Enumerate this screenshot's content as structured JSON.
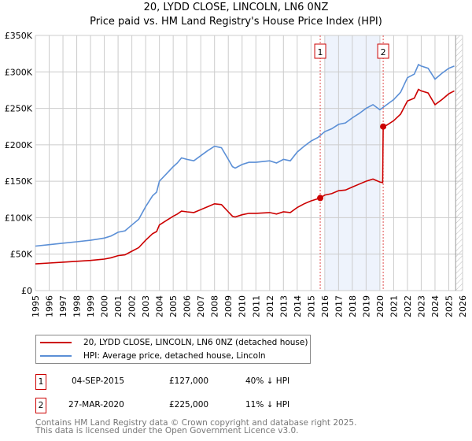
{
  "title": "20, LYDD CLOSE, LINCOLN, LN6 0NZ",
  "subtitle": "Price paid vs. HM Land Registry's House Price Index (HPI)",
  "chart_data": {
    "type": "line",
    "title": "20, LYDD CLOSE, LINCOLN, LN6 0NZ — Price paid vs. HM Land Registry's House Price Index (HPI)",
    "xlim": [
      1995,
      2026
    ],
    "ylim": [
      0,
      350000
    ],
    "x_ticks": [
      "1995",
      "1996",
      "1997",
      "1998",
      "1999",
      "2000",
      "2001",
      "2002",
      "2003",
      "2004",
      "2005",
      "2006",
      "2007",
      "2008",
      "2009",
      "2010",
      "2011",
      "2012",
      "2013",
      "2014",
      "2015",
      "2016",
      "2017",
      "2018",
      "2019",
      "2020",
      "2021",
      "2022",
      "2023",
      "2024",
      "2025",
      "2026"
    ],
    "y_ticks": [
      {
        "v": 0,
        "label": "£0"
      },
      {
        "v": 50000,
        "label": "£50K"
      },
      {
        "v": 100000,
        "label": "£100K"
      },
      {
        "v": 150000,
        "label": "£150K"
      },
      {
        "v": 200000,
        "label": "£200K"
      },
      {
        "v": 250000,
        "label": "£250K"
      },
      {
        "v": 300000,
        "label": "£300K"
      },
      {
        "v": 350000,
        "label": "£350K"
      }
    ],
    "grid": true,
    "shaded_range": [
      2016,
      2020
    ],
    "forecast_hatch_from": 2025.5,
    "series": [
      {
        "name": "20, LYDD CLOSE, LINCOLN, LN6 0NZ (detached house)",
        "color": "#cc0000",
        "x": [
          1995,
          1996,
          1997,
          1998,
          1999,
          2000,
          2000.5,
          2001,
          2001.5,
          2002,
          2002.5,
          2003,
          2003.5,
          2003.8,
          2004,
          2004.5,
          2005,
          2005.3,
          2005.6,
          2006,
          2006.5,
          2007,
          2007.5,
          2008,
          2008.5,
          2009,
          2009.3,
          2009.5,
          2010,
          2010.5,
          2011,
          2012,
          2012.5,
          2013,
          2013.5,
          2014,
          2014.5,
          2015,
          2015.5,
          2015.67,
          2016,
          2016.5,
          2017,
          2017.5,
          2018,
          2018.5,
          2019,
          2019.5,
          2020,
          2020.2,
          2020.24,
          2020.5,
          2021,
          2021.5,
          2022,
          2022.5,
          2022.8,
          2023,
          2023.5,
          2024,
          2024.5,
          2025,
          2025.4
        ],
        "y": [
          36600,
          37800,
          39000,
          40200,
          41400,
          43200,
          45000,
          48000,
          49000,
          54000,
          59000,
          69000,
          78000,
          81000,
          90000,
          96000,
          102000,
          105000,
          109000,
          108000,
          107000,
          111000,
          115000,
          119000,
          118000,
          108000,
          102000,
          101000,
          104000,
          106000,
          106000,
          107000,
          105000,
          108000,
          107000,
          114000,
          119000,
          123000,
          126000,
          127000,
          131000,
          133000,
          137000,
          138000,
          142000,
          146000,
          150000,
          153000,
          149000,
          148000,
          225000,
          227000,
          233000,
          242000,
          260000,
          264000,
          276000,
          274000,
          271000,
          255000,
          262000,
          270000,
          274000
        ]
      },
      {
        "name": "HPI: Average price, detached house, Lincoln",
        "color": "#5b8fd6",
        "x": [
          1995,
          1996,
          1997,
          1998,
          1999,
          2000,
          2000.5,
          2001,
          2001.5,
          2002,
          2002.5,
          2003,
          2003.5,
          2003.8,
          2004,
          2004.5,
          2005,
          2005.3,
          2005.6,
          2006,
          2006.5,
          2007,
          2007.5,
          2008,
          2008.5,
          2009,
          2009.3,
          2009.5,
          2010,
          2010.5,
          2011,
          2012,
          2012.5,
          2013,
          2013.5,
          2014,
          2014.5,
          2015,
          2015.5,
          2016,
          2016.5,
          2017,
          2017.5,
          2018,
          2018.5,
          2019,
          2019.5,
          2020,
          2020.5,
          2021,
          2021.5,
          2022,
          2022.5,
          2022.8,
          2023,
          2023.5,
          2024,
          2024.5,
          2025,
          2025.4
        ],
        "y": [
          61000,
          63000,
          65000,
          67000,
          69000,
          72000,
          75000,
          80000,
          82000,
          90000,
          98000,
          115000,
          130000,
          135000,
          150000,
          160000,
          170000,
          175000,
          182000,
          180000,
          178000,
          185000,
          192000,
          198000,
          196000,
          180000,
          170000,
          168000,
          173000,
          176000,
          176000,
          178000,
          175000,
          180000,
          178000,
          190000,
          198000,
          205000,
          210000,
          218000,
          222000,
          228000,
          230000,
          237000,
          243000,
          250000,
          255000,
          248000,
          255000,
          262000,
          272000,
          292000,
          297000,
          310000,
          308000,
          305000,
          290000,
          298000,
          305000,
          308000
        ]
      }
    ],
    "sales": [
      {
        "id": "1",
        "x": 2015.67,
        "y": 127000,
        "date": "04-SEP-2015",
        "price": "£127,000",
        "hpi": "40% ↓ HPI"
      },
      {
        "id": "2",
        "x": 2020.24,
        "y": 225000,
        "date": "27-MAR-2020",
        "price": "£225,000",
        "hpi": "11% ↓ HPI"
      }
    ]
  },
  "footer": {
    "line1": "Contains HM Land Registry data © Crown copyright and database right 2025.",
    "line2": "This data is licensed under the Open Government Licence v3.0."
  }
}
